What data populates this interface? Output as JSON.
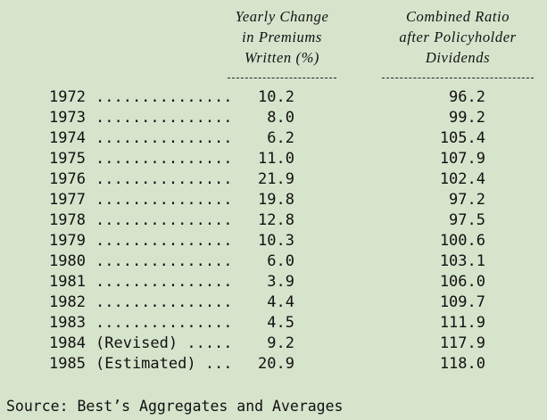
{
  "header": {
    "col1": [
      "Yearly Change",
      "in Premiums",
      "Written (%)"
    ],
    "col2": [
      "Combined Ratio",
      "after Policyholder",
      "Dividends"
    ]
  },
  "rows": [
    {
      "year": "1972",
      "label": "...............",
      "premiums": "10.2",
      "ratio": "96.2"
    },
    {
      "year": "1973",
      "label": "...............",
      "premiums": "8.0",
      "ratio": "99.2"
    },
    {
      "year": "1974",
      "label": "...............",
      "premiums": "6.2",
      "ratio": "105.4"
    },
    {
      "year": "1975",
      "label": "...............",
      "premiums": "11.0",
      "ratio": "107.9"
    },
    {
      "year": "1976",
      "label": "...............",
      "premiums": "21.9",
      "ratio": "102.4"
    },
    {
      "year": "1977",
      "label": "...............",
      "premiums": "19.8",
      "ratio": "97.2"
    },
    {
      "year": "1978",
      "label": "...............",
      "premiums": "12.8",
      "ratio": "97.5"
    },
    {
      "year": "1979",
      "label": "...............",
      "premiums": "10.3",
      "ratio": "100.6"
    },
    {
      "year": "1980",
      "label": "...............",
      "premiums": "6.0",
      "ratio": "103.1"
    },
    {
      "year": "1981",
      "label": "...............",
      "premiums": "3.9",
      "ratio": "106.0"
    },
    {
      "year": "1982",
      "label": "...............",
      "premiums": "4.4",
      "ratio": "109.7"
    },
    {
      "year": "1983",
      "label": "...............",
      "premiums": "4.5",
      "ratio": "111.9"
    },
    {
      "year": "1984",
      "label": "(Revised) .....",
      "premiums": "9.2",
      "ratio": "117.9"
    },
    {
      "year": "1985",
      "label": "(Estimated) ...",
      "premiums": "20.9",
      "ratio": "118.0"
    }
  ],
  "source": "Source: Best’s Aggregates and Averages"
}
